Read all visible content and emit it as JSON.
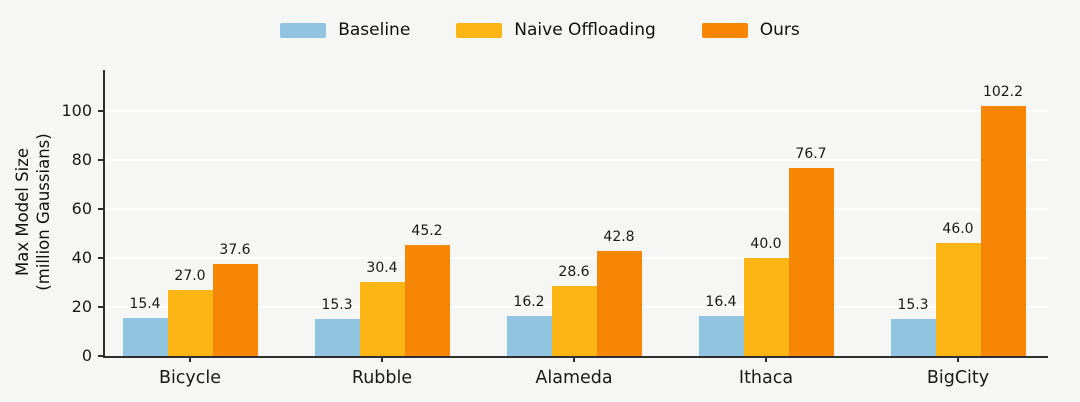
{
  "chart_data": {
    "type": "bar",
    "categories": [
      "Bicycle",
      "Rubble",
      "Alameda",
      "Ithaca",
      "BigCity"
    ],
    "series": [
      {
        "name": "Baseline",
        "color": "#90c4e0",
        "values": [
          15.4,
          15.3,
          16.2,
          16.4,
          15.3
        ]
      },
      {
        "name": "Naive Offloading",
        "color": "#fdb515",
        "values": [
          27.0,
          30.4,
          28.6,
          40.0,
          46.0
        ]
      },
      {
        "name": "Ours",
        "color": "#f78605",
        "values": [
          37.6,
          45.2,
          42.8,
          76.7,
          102.2
        ]
      }
    ],
    "title": "",
    "xlabel": "",
    "ylabel": "Max Model Size (million Gaussians)",
    "ylabel_lines": [
      "Max Model Size",
      "(million Gaussians)"
    ],
    "ylim": [
      0,
      116
    ],
    "yticks": [
      0,
      20,
      40,
      60,
      80,
      100
    ],
    "legend_position": "top-center",
    "grid": "horizontal-white",
    "bar_value_labels": true,
    "value_label_decimals": 1
  },
  "colors": {
    "background": "#f6f6f4",
    "gridline": "#ffffff",
    "axis": "#2e2e2e",
    "text": "#1a1a1a"
  }
}
